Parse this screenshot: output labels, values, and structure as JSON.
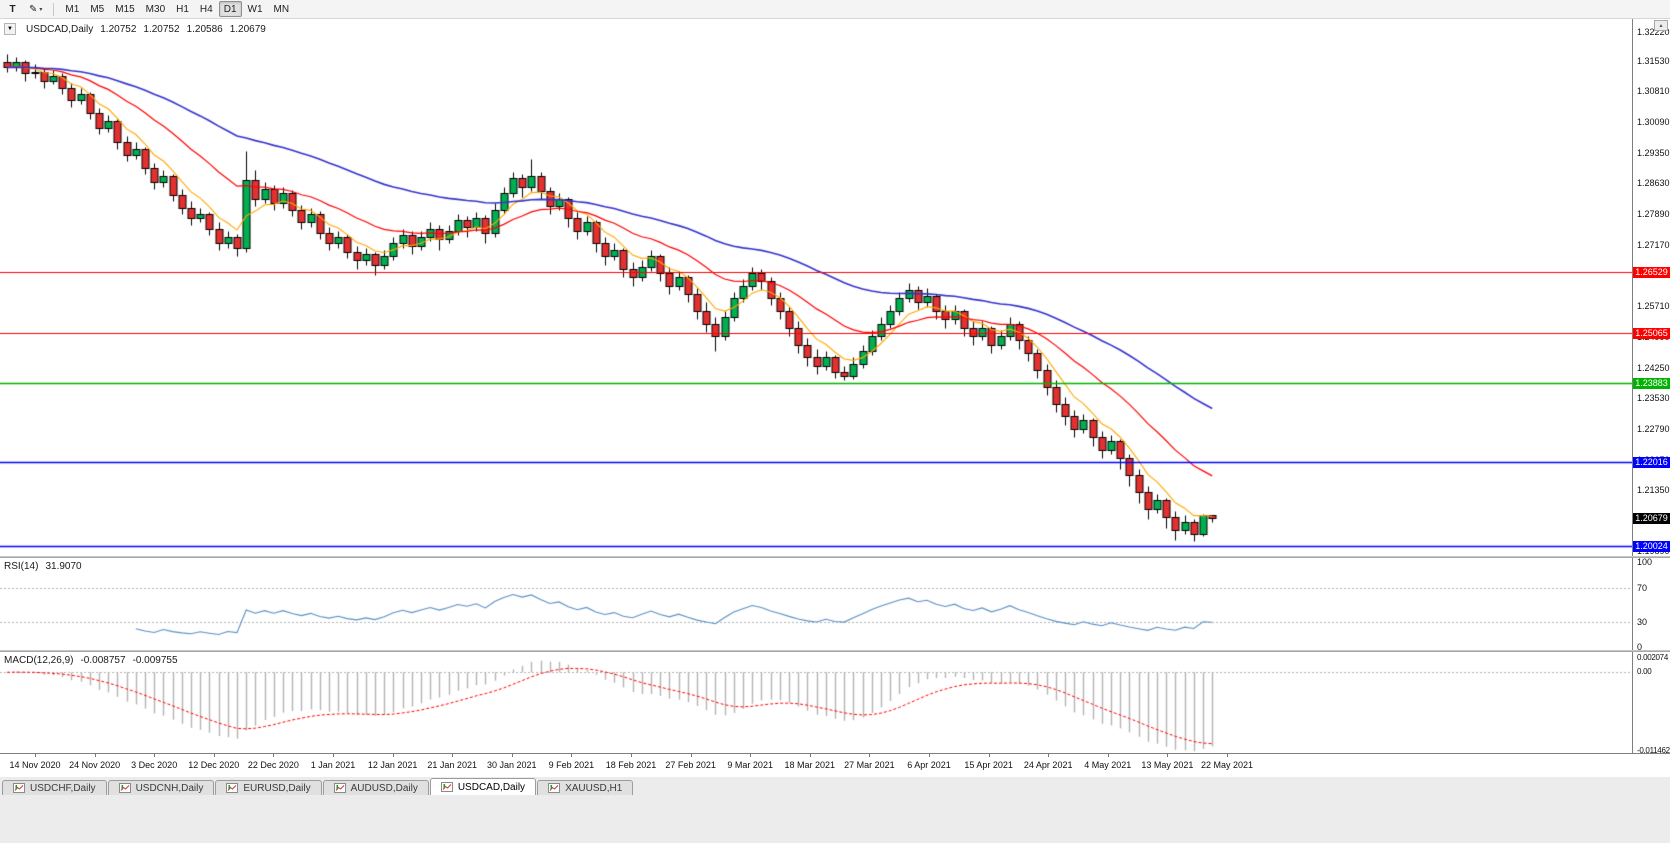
{
  "toolbar": {
    "cursor_label": "T",
    "timeframes": [
      "M1",
      "M5",
      "M15",
      "M30",
      "H1",
      "H4",
      "D1",
      "W1",
      "MN"
    ],
    "active_timeframe": "D1"
  },
  "icons": {
    "pencil": "✎",
    "caret": "▾",
    "one_click_arrow": "▼",
    "axis_button": "▴"
  },
  "colors": {
    "candle_up": "#00b050",
    "candle_down": "#e53030",
    "wick": "#000000",
    "rsi_line": "#5b8ec4",
    "macd_hist": "#b4b4b4",
    "macd_signal": "#ff0000",
    "current_tag_bg": "#000000"
  },
  "main_chart": {
    "symbol_label": "USDCAD,Daily",
    "ohlc": {
      "open": "1.20752",
      "high": "1.20752",
      "low": "1.20586",
      "close": "1.20679"
    },
    "price_axis_labels": [
      "1.32220",
      "1.31530",
      "1.30810",
      "1.30090",
      "1.29350",
      "1.28630",
      "1.27890",
      "1.27170",
      "1.26450",
      "1.25710",
      "1.24990",
      "1.24250",
      "1.23530",
      "1.22790",
      "1.22070",
      "1.21350",
      "1.20630",
      "1.19890"
    ],
    "hlines": [
      {
        "price": 1.26529,
        "label": "1.26529",
        "color": "#ff0000",
        "width": 1.2
      },
      {
        "price": 1.25065,
        "label": "1.25065",
        "color": "#ff0000",
        "width": 1.2
      },
      {
        "price": 1.23883,
        "label": "1.23883",
        "color": "#00b300",
        "width": 1.4
      },
      {
        "price": 1.22016,
        "label": "1.22016",
        "color": "#0000ff",
        "width": 1.6
      },
      {
        "price": 1.20024,
        "label": "1.20024",
        "color": "#0000ff",
        "width": 1.6
      }
    ],
    "current_price": {
      "price": 1.20679,
      "label": "1.20679"
    },
    "moving_averages": [
      {
        "period": 6,
        "color": "#ffa800",
        "width": 1.1
      },
      {
        "period": 18,
        "color": "#ff0000",
        "width": 1.2
      },
      {
        "period": 45,
        "color": "#3333cc",
        "width": 1.6
      }
    ]
  },
  "rsi": {
    "name": "RSI(14)",
    "value": "31.9070",
    "period": 14,
    "axis_labels": [
      {
        "label": "100",
        "value": 100
      },
      {
        "label": "70",
        "value": 70
      },
      {
        "label": "30",
        "value": 30
      },
      {
        "label": "0",
        "value": 0
      }
    ],
    "levels": [
      70,
      30
    ]
  },
  "macd": {
    "name": "MACD(12,26,9)",
    "value_main": "-0.008757",
    "value_signal": "-0.009755",
    "fast": 12,
    "slow": 26,
    "signal": 9,
    "axis_labels": [
      {
        "label": "0.002074",
        "value": 0.002074
      },
      {
        "label": "0.00",
        "value": 0
      },
      {
        "label": "-0.011462",
        "value": -0.011462
      }
    ],
    "scale": {
      "top": 0.00296,
      "bottom": -0.01178
    }
  },
  "time_axis": {
    "labels": [
      "14 Nov 2020",
      "24 Nov 2020",
      "3 Dec 2020",
      "12 Dec 2020",
      "22 Dec 2020",
      "1 Jan 2021",
      "12 Jan 2021",
      "21 Jan 2021",
      "30 Jan 2021",
      "9 Feb 2021",
      "18 Feb 2021",
      "27 Feb 2021",
      "9 Mar 2021",
      "18 Mar 2021",
      "27 Mar 2021",
      "6 Apr 2021",
      "15 Apr 2021",
      "24 Apr 2021",
      "4 May 2021",
      "13 May 2021",
      "22 May 2021"
    ]
  },
  "tabs": [
    {
      "label": "USDCHF,Daily",
      "active": false
    },
    {
      "label": "USDCNH,Daily",
      "active": false
    },
    {
      "label": "EURUSD,Daily",
      "active": false
    },
    {
      "label": "AUDUSD,Daily",
      "active": false
    },
    {
      "label": "USDCAD,Daily",
      "active": true
    },
    {
      "label": "XAUUSD,H1",
      "active": false
    }
  ],
  "chart_data": {
    "type": "candlestick",
    "symbol": "USDCAD",
    "period": "Daily",
    "price_range": {
      "top": 1.32529,
      "bottom": 1.19781
    },
    "x_labels": [
      "14 Nov 2020",
      "24 Nov 2020",
      "3 Dec 2020",
      "12 Dec 2020",
      "22 Dec 2020",
      "1 Jan 2021",
      "12 Jan 2021",
      "21 Jan 2021",
      "30 Jan 2021",
      "9 Feb 2021",
      "18 Feb 2021",
      "27 Feb 2021",
      "9 Mar 2021",
      "18 Mar 2021",
      "27 Mar 2021",
      "6 Apr 2021",
      "15 Apr 2021",
      "24 Apr 2021",
      "4 May 2021",
      "13 May 2021",
      "22 May 2021"
    ],
    "candles": [
      [
        1.315,
        1.317,
        1.3128,
        1.3138
      ],
      [
        1.3138,
        1.3162,
        1.313,
        1.315
      ],
      [
        1.315,
        1.3156,
        1.3105,
        1.3125
      ],
      [
        1.3125,
        1.3145,
        1.3112,
        1.3128
      ],
      [
        1.3128,
        1.3135,
        1.309,
        1.3105
      ],
      [
        1.3105,
        1.3133,
        1.3098,
        1.3118
      ],
      [
        1.3118,
        1.3125,
        1.3075,
        1.309
      ],
      [
        1.309,
        1.31,
        1.3045,
        1.306
      ],
      [
        1.306,
        1.3088,
        1.305,
        1.3075
      ],
      [
        1.3075,
        1.308,
        1.3015,
        1.303
      ],
      [
        1.303,
        1.3042,
        1.298,
        1.2995
      ],
      [
        1.2995,
        1.3025,
        1.2985,
        1.301
      ],
      [
        1.301,
        1.3015,
        1.2945,
        1.296
      ],
      [
        1.296,
        1.2975,
        1.2915,
        1.293
      ],
      [
        1.293,
        1.296,
        1.292,
        1.2945
      ],
      [
        1.2945,
        1.295,
        1.2885,
        1.29
      ],
      [
        1.29,
        1.291,
        1.285,
        1.2865
      ],
      [
        1.2865,
        1.2895,
        1.2855,
        1.288
      ],
      [
        1.288,
        1.2885,
        1.282,
        1.2835
      ],
      [
        1.2835,
        1.285,
        1.279,
        1.2805
      ],
      [
        1.2805,
        1.282,
        1.2765,
        1.278
      ],
      [
        1.278,
        1.2805,
        1.277,
        1.279
      ],
      [
        1.279,
        1.2795,
        1.274,
        1.2755
      ],
      [
        1.2755,
        1.277,
        1.2705,
        1.272
      ],
      [
        1.272,
        1.275,
        1.271,
        1.2735
      ],
      [
        1.2735,
        1.2742,
        1.269,
        1.271
      ],
      [
        1.271,
        1.294,
        1.27,
        1.287
      ],
      [
        1.287,
        1.2895,
        1.281,
        1.2825
      ],
      [
        1.2825,
        1.2865,
        1.2815,
        1.285
      ],
      [
        1.285,
        1.286,
        1.28,
        1.2815
      ],
      [
        1.2815,
        1.2855,
        1.2805,
        1.284
      ],
      [
        1.284,
        1.2848,
        1.2785,
        1.28
      ],
      [
        1.28,
        1.2812,
        1.2755,
        1.277
      ],
      [
        1.277,
        1.2805,
        1.276,
        1.279
      ],
      [
        1.279,
        1.2798,
        1.273,
        1.2745
      ],
      [
        1.2745,
        1.276,
        1.2705,
        1.272
      ],
      [
        1.272,
        1.275,
        1.271,
        1.2735
      ],
      [
        1.2735,
        1.2742,
        1.2685,
        1.27
      ],
      [
        1.27,
        1.2715,
        1.266,
        1.268
      ],
      [
        1.268,
        1.271,
        1.267,
        1.2695
      ],
      [
        1.2695,
        1.27,
        1.2645,
        1.267
      ],
      [
        1.267,
        1.2705,
        1.266,
        1.269
      ],
      [
        1.269,
        1.2735,
        1.268,
        1.272
      ],
      [
        1.272,
        1.2755,
        1.271,
        1.274
      ],
      [
        1.274,
        1.275,
        1.2695,
        1.2715
      ],
      [
        1.2715,
        1.275,
        1.2705,
        1.2735
      ],
      [
        1.2735,
        1.277,
        1.2725,
        1.2755
      ],
      [
        1.2755,
        1.2765,
        1.2705,
        1.273
      ],
      [
        1.273,
        1.2765,
        1.272,
        1.275
      ],
      [
        1.275,
        1.279,
        1.274,
        1.2775
      ],
      [
        1.2775,
        1.2785,
        1.2735,
        1.276
      ],
      [
        1.276,
        1.2795,
        1.275,
        1.278
      ],
      [
        1.278,
        1.2788,
        1.272,
        1.2745
      ],
      [
        1.2745,
        1.2815,
        1.2735,
        1.28
      ],
      [
        1.28,
        1.2855,
        1.279,
        1.284
      ],
      [
        1.284,
        1.289,
        1.283,
        1.2875
      ],
      [
        1.2875,
        1.2885,
        1.283,
        1.2855
      ],
      [
        1.2855,
        1.292,
        1.2845,
        1.288
      ],
      [
        1.288,
        1.289,
        1.2825,
        1.2845
      ],
      [
        1.2845,
        1.2855,
        1.279,
        1.281
      ],
      [
        1.281,
        1.284,
        1.28,
        1.2825
      ],
      [
        1.2825,
        1.283,
        1.276,
        1.278
      ],
      [
        1.278,
        1.2795,
        1.273,
        1.275
      ],
      [
        1.275,
        1.2785,
        1.274,
        1.277
      ],
      [
        1.277,
        1.2775,
        1.27,
        1.272
      ],
      [
        1.272,
        1.2735,
        1.267,
        1.269
      ],
      [
        1.269,
        1.272,
        1.268,
        1.2705
      ],
      [
        1.2705,
        1.271,
        1.264,
        1.266
      ],
      [
        1.266,
        1.2675,
        1.262,
        1.264
      ],
      [
        1.264,
        1.268,
        1.263,
        1.2665
      ],
      [
        1.2665,
        1.2705,
        1.2655,
        1.269
      ],
      [
        1.269,
        1.2695,
        1.263,
        1.265
      ],
      [
        1.265,
        1.2665,
        1.26,
        1.262
      ],
      [
        1.262,
        1.2655,
        1.261,
        1.264
      ],
      [
        1.264,
        1.2645,
        1.258,
        1.26
      ],
      [
        1.26,
        1.2615,
        1.254,
        1.256
      ],
      [
        1.256,
        1.258,
        1.251,
        1.253
      ],
      [
        1.253,
        1.2545,
        1.2465,
        1.25
      ],
      [
        1.25,
        1.256,
        1.249,
        1.2545
      ],
      [
        1.2545,
        1.2605,
        1.2535,
        1.259
      ],
      [
        1.259,
        1.2635,
        1.258,
        1.262
      ],
      [
        1.262,
        1.2665,
        1.261,
        1.265
      ],
      [
        1.265,
        1.266,
        1.261,
        1.263
      ],
      [
        1.263,
        1.264,
        1.2575,
        1.259
      ],
      [
        1.259,
        1.2605,
        1.254,
        1.256
      ],
      [
        1.256,
        1.257,
        1.25,
        1.252
      ],
      [
        1.252,
        1.2535,
        1.246,
        1.248
      ],
      [
        1.248,
        1.2495,
        1.243,
        1.245
      ],
      [
        1.245,
        1.247,
        1.241,
        1.243
      ],
      [
        1.243,
        1.2465,
        1.242,
        1.245
      ],
      [
        1.245,
        1.2455,
        1.24,
        1.2415
      ],
      [
        1.2415,
        1.243,
        1.2395,
        1.2405
      ],
      [
        1.2405,
        1.245,
        1.2398,
        1.2435
      ],
      [
        1.2435,
        1.248,
        1.2425,
        1.2465
      ],
      [
        1.2465,
        1.2515,
        1.2455,
        1.25
      ],
      [
        1.25,
        1.2545,
        1.249,
        1.253
      ],
      [
        1.253,
        1.2575,
        1.252,
        1.256
      ],
      [
        1.256,
        1.2605,
        1.255,
        1.259
      ],
      [
        1.259,
        1.2625,
        1.258,
        1.261
      ],
      [
        1.261,
        1.262,
        1.2565,
        1.258
      ],
      [
        1.258,
        1.2615,
        1.257,
        1.2595
      ],
      [
        1.2595,
        1.26,
        1.254,
        1.256
      ],
      [
        1.256,
        1.2575,
        1.252,
        1.254
      ],
      [
        1.254,
        1.2575,
        1.253,
        1.256
      ],
      [
        1.256,
        1.2565,
        1.25,
        1.252
      ],
      [
        1.252,
        1.2535,
        1.248,
        1.25
      ],
      [
        1.25,
        1.2535,
        1.249,
        1.252
      ],
      [
        1.252,
        1.2525,
        1.246,
        1.248
      ],
      [
        1.248,
        1.2515,
        1.247,
        1.25
      ],
      [
        1.25,
        1.2545,
        1.249,
        1.253
      ],
      [
        1.253,
        1.2535,
        1.247,
        1.249
      ],
      [
        1.249,
        1.25,
        1.244,
        1.246
      ],
      [
        1.246,
        1.247,
        1.24,
        1.242
      ],
      [
        1.242,
        1.2435,
        1.236,
        1.238
      ],
      [
        1.238,
        1.2395,
        1.232,
        1.234
      ],
      [
        1.234,
        1.2355,
        1.229,
        1.231
      ],
      [
        1.231,
        1.2325,
        1.226,
        1.228
      ],
      [
        1.228,
        1.2315,
        1.227,
        1.23
      ],
      [
        1.23,
        1.2305,
        1.224,
        1.226
      ],
      [
        1.226,
        1.2275,
        1.221,
        1.223
      ],
      [
        1.223,
        1.2265,
        1.222,
        1.225
      ],
      [
        1.225,
        1.2255,
        1.2185,
        1.221
      ],
      [
        1.221,
        1.222,
        1.2145,
        1.217
      ],
      [
        1.217,
        1.2185,
        1.2105,
        1.213
      ],
      [
        1.213,
        1.2145,
        1.2065,
        1.209
      ],
      [
        1.209,
        1.2125,
        1.208,
        1.211
      ],
      [
        1.211,
        1.2115,
        1.2045,
        1.207
      ],
      [
        1.207,
        1.2085,
        1.2015,
        1.204
      ],
      [
        1.204,
        1.2075,
        1.203,
        1.206
      ],
      [
        1.206,
        1.2065,
        1.2013,
        1.203
      ],
      [
        1.203,
        1.2078,
        1.2025,
        1.20752
      ],
      [
        1.20752,
        1.20752,
        1.20586,
        1.20679
      ]
    ]
  }
}
